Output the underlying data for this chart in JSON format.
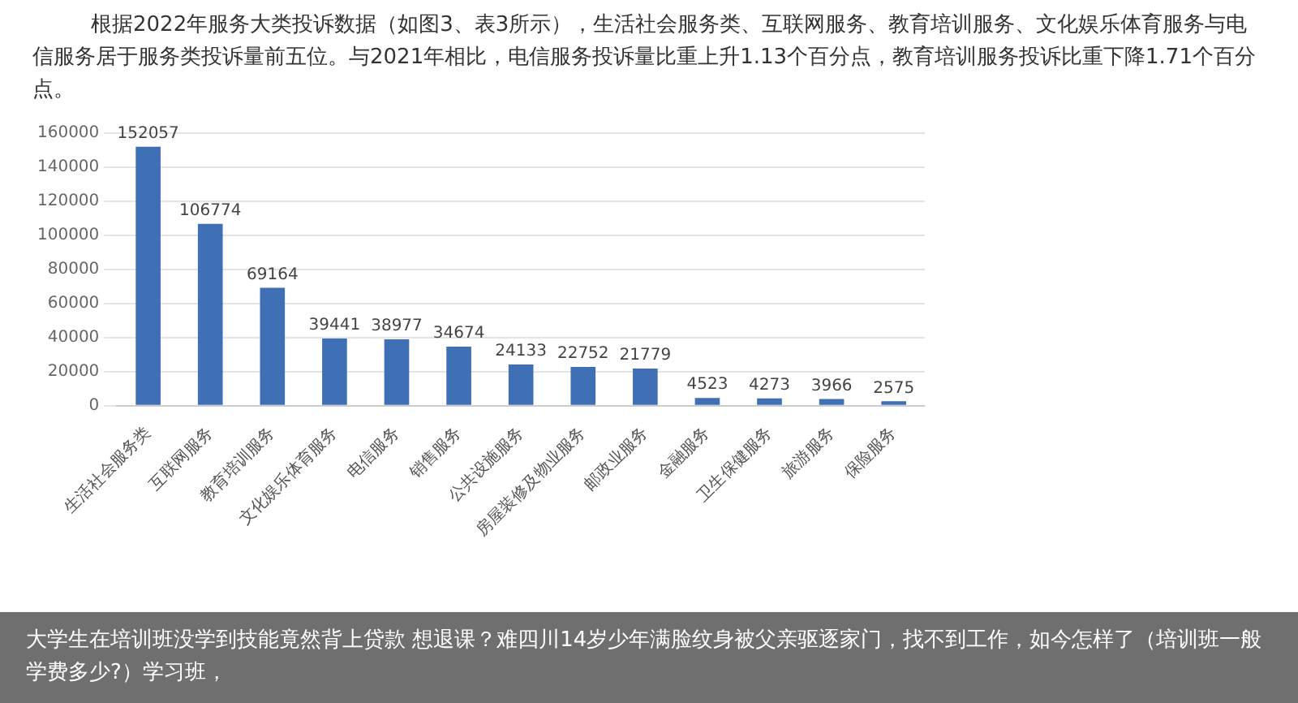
{
  "chart_data": {
    "type": "bar",
    "title": "根据2022年服务大类投诉数据（如图3、表3所示），生活社会服务类、互联网服务、教育培训服务、文化娱乐体育服务与电信服务居于服务类投诉量前五位。与2021年相比，电信服务投诉量比重上升1.13个百分点，教育培训服务投诉比重下降1.71个百分点。",
    "categories": [
      "生活社会服务类",
      "互联网服务",
      "教育培训服务",
      "文化娱乐体育服务",
      "电信服务",
      "销售服务",
      "公共设施服务",
      "房屋装修及物业服务",
      "邮政业服务",
      "金融服务",
      "卫生保健服务",
      "旅游服务",
      "保险服务"
    ],
    "values": [
      152057,
      106774,
      69164,
      39441,
      38977,
      34674,
      24133,
      22752,
      21779,
      4523,
      4273,
      3966,
      2575
    ],
    "color": "#3f6fb5",
    "ylim": [
      0,
      160000
    ],
    "yticks": [
      0,
      20000,
      40000,
      60000,
      80000,
      100000,
      120000,
      140000,
      160000
    ],
    "grid": "y",
    "data_labels": true,
    "annotations": [
      "大学生在培训班没学到技能竟然背上贷款 想退课？难四川14岁少年满脸纹身被父亲驱逐家门，找不到工作，如今怎样了（培训班一般学费多少?）学习班，"
    ]
  }
}
